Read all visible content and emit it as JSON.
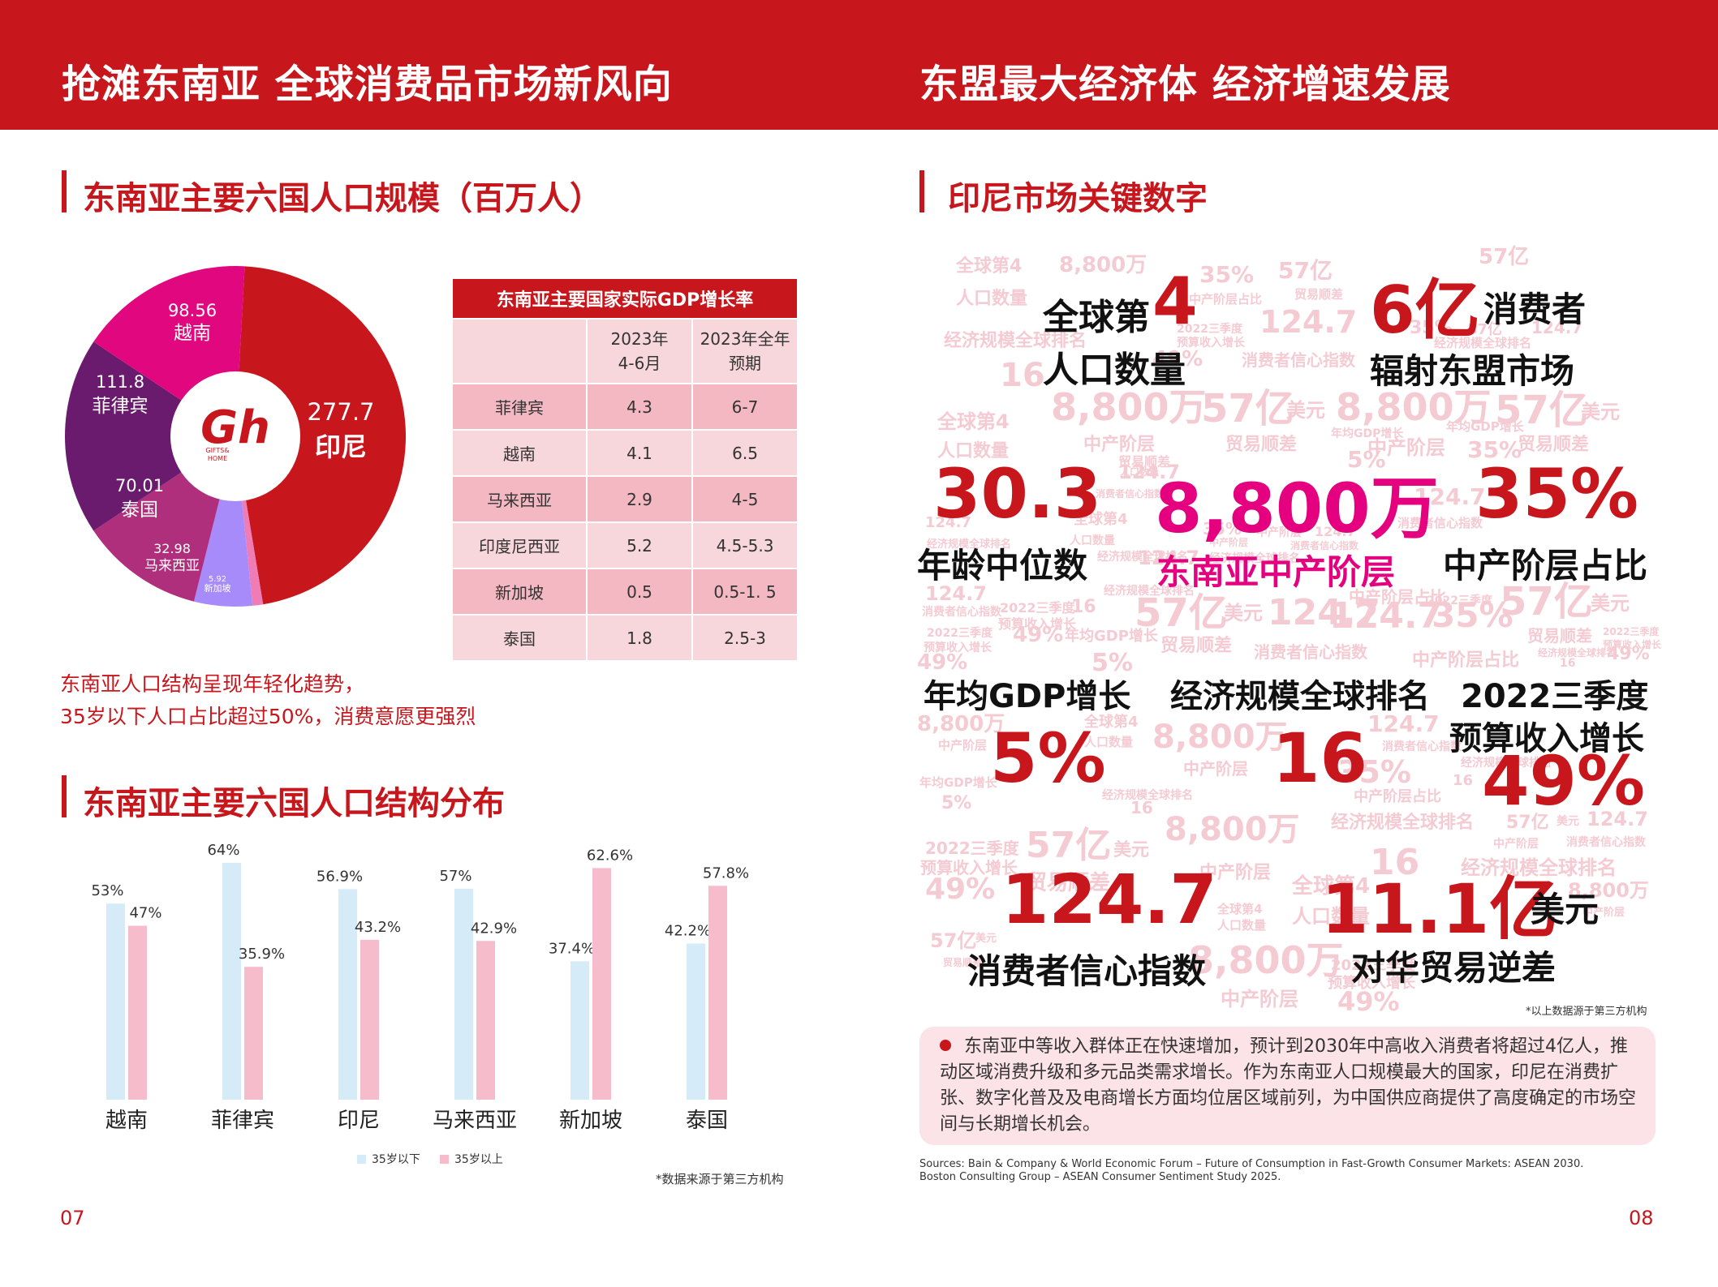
{
  "left_page": {
    "banner_title": "抢滩东南亚 全球消费品市场新风向",
    "section1_title": "东南亚主要六国人口规模（百万人）",
    "logo_text_1": "GIFTS&",
    "logo_text_2": "HOME",
    "population_note_1": "东南亚人口结构呈现年轻化趋势，",
    "population_note_2": "35岁以下人口占比超过50%，消费意愿更强烈",
    "section2_title": "东南亚主要六国人口结构分布",
    "source_note": "*数据来源于第三方机构",
    "page_number": "07"
  },
  "gdp_table": {
    "title": "东南亚主要国家实际GDP增长率",
    "header": [
      "",
      "2023年\n4-6月",
      "2023年全年\n预期"
    ],
    "header_1_line1": "2023年",
    "header_1_line2": "4-6月",
    "header_2_line1": "2023年全年",
    "header_2_line2": "预期",
    "rows": [
      [
        "菲律宾",
        "4.3",
        "6-7"
      ],
      [
        "越南",
        "4.1",
        "6.5"
      ],
      [
        "马来西亚",
        "2.9",
        "4-5"
      ],
      [
        "印度尼西亚",
        "5.2",
        "4.5-5.3"
      ],
      [
        "新加坡",
        "0.5",
        "0.5-1. 5"
      ],
      [
        "泰国",
        "1.8",
        "2.5-3"
      ]
    ]
  },
  "chart_data": [
    {
      "type": "pie",
      "title": "东南亚主要六国人口规模（百万人）",
      "slices": [
        {
          "name": "印尼",
          "value": 277.7,
          "color": "#c8161d"
        },
        {
          "name": "新加坡",
          "value": 5.92,
          "color": "#f07cb6"
        },
        {
          "name": "马来西亚",
          "value": 32.98,
          "color": "#a78bfa"
        },
        {
          "name": "泰国",
          "value": 70.01,
          "color": "#b02f7c"
        },
        {
          "name": "菲律宾",
          "value": 111.8,
          "color": "#6a1b6e"
        },
        {
          "name": "越南",
          "value": 98.56,
          "color": "#e0077f"
        }
      ],
      "value_labels": [
        "277.7",
        "5.92",
        "32.98",
        "70.01",
        "111.8",
        "98.56"
      ]
    },
    {
      "type": "bar",
      "title": "东南亚主要六国人口结构分布",
      "categories": [
        "越南",
        "菲律宾",
        "印尼",
        "马来西亚",
        "新加坡",
        "泰国"
      ],
      "series": [
        {
          "name": "35岁以下",
          "values": [
            53,
            64,
            56.9,
            57,
            37.4,
            42.2
          ],
          "labels": [
            "53%",
            "64%",
            "56.9%",
            "57%",
            "37.4%",
            "42.2%"
          ],
          "color": "#d5ecf8"
        },
        {
          "name": "35岁以上",
          "values": [
            47,
            35.9,
            43.2,
            42.9,
            62.6,
            57.8
          ],
          "labels": [
            "47%",
            "35.9%",
            "43.2%",
            "42.9%",
            "62.6%",
            "57.8%"
          ],
          "color": "#f6bccb"
        }
      ],
      "ylim": [
        0,
        64
      ],
      "legend_position": "bottom-center",
      "grid": false
    }
  ],
  "right_page": {
    "banner_title": "东盟最大经济体 经济增速发展",
    "section_title": "印尼市场关键数字",
    "stats": {
      "rank_label_1": "全球第",
      "rank_value": "4",
      "rank_label_2": "人口数量",
      "consumers_value": "6亿",
      "consumers_label_1": "消费者",
      "consumers_label_2": "辐射东盟市场",
      "median_age_value": "30.3",
      "median_age_label": "年龄中位数",
      "middle_class_value": "8,800万",
      "middle_class_label": "东南亚中产阶层",
      "middle_share_value": "35%",
      "middle_share_label": "中产阶层占比",
      "gdp_growth_label": "年均GDP增长",
      "gdp_growth_value": "5%",
      "econ_rank_label": "经济规模全球排名",
      "econ_rank_value": "16",
      "budget_label_1": "2022三季度",
      "budget_label_2": "预算收入增长",
      "budget_value": "49%",
      "confidence_value": "124.7",
      "confidence_label": "消费者信心指数",
      "deficit_value": "11.1亿",
      "deficit_unit": "美元",
      "deficit_label": "对华贸易逆差"
    },
    "cloud_words": {
      "rank": "全球第4",
      "population": "人口数量",
      "people_8800": "8,800万",
      "pct35": "35%",
      "trade_57": "57亿",
      "usd": "美元",
      "middle": "中产阶层",
      "middle_share": "中产阶层占比",
      "trade_surplus": "贸易顺差",
      "econ_rank": "经济规模全球排名",
      "v1247": "124.7",
      "v16": "16",
      "pct49": "49%",
      "confidence": "消费者信心指数",
      "gdp": "年均GDP增长",
      "pct5": "5%",
      "q3_2022": "2022三季度",
      "budget": "预算收入增长"
    },
    "source_third_party": "*以上数据源于第三方机构",
    "summary": "东南亚中等收入群体正在快速增加，预计到2030年中高收入消费者将超过4亿人，推动区域消费升级和多元品类需求增长。作为东南亚人口规模最大的国家，印尼在消费扩张、数字化普及及电商增长方面均位居区域前列，为中国供应商提供了高度确定的市场空间与长期增长机会。",
    "sources_line1": "Sources: Bain & Company & World Economic Forum – Future of Consumption in Fast-Growth Consumer Markets: ASEAN 2030.",
    "sources_line2": "Boston Consulting Group – ASEAN Consumer Sentiment Study 2025.",
    "page_number": "08"
  },
  "colors": {
    "brand_red": "#c8161d",
    "magenta": "#e4007f",
    "cloud_pink": "#f5cbd3",
    "panel_pink": "#fbe3e7"
  }
}
